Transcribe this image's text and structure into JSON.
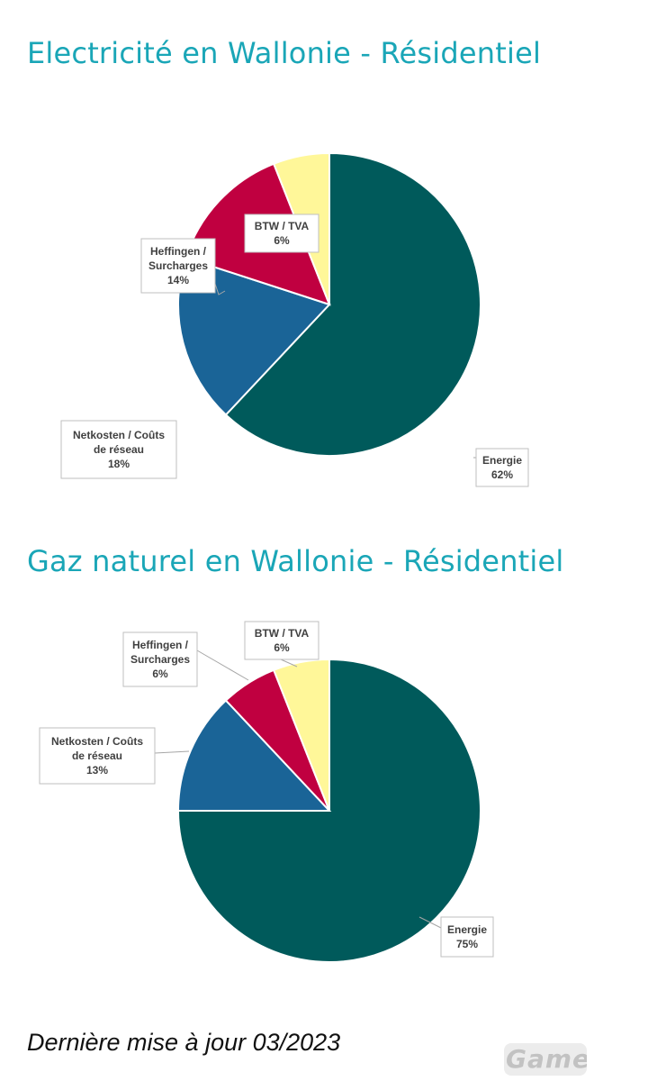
{
  "chart_data": [
    {
      "type": "pie",
      "title": "Electricité en Wallonie - Résidentiel",
      "slices": [
        {
          "label_lines": [
            "Energie"
          ],
          "value": 62,
          "value_label": "62%",
          "color": "#005a5b"
        },
        {
          "label_lines": [
            "Netkosten / Coûts",
            "de réseau"
          ],
          "value": 18,
          "value_label": "18%",
          "color": "#1a6497"
        },
        {
          "label_lines": [
            "Heffingen /",
            "Surcharges"
          ],
          "value": 14,
          "value_label": "14%",
          "color": "#c00040"
        },
        {
          "label_lines": [
            "BTW / TVA"
          ],
          "value": 6,
          "value_label": "6%",
          "color": "#fff799"
        }
      ]
    },
    {
      "type": "pie",
      "title": "Gaz naturel en Wallonie - Résidentiel",
      "slices": [
        {
          "label_lines": [
            "Energie"
          ],
          "value": 75,
          "value_label": "75%",
          "color": "#005a5b"
        },
        {
          "label_lines": [
            "Netkosten / Coûts",
            "de réseau"
          ],
          "value": 13,
          "value_label": "13%",
          "color": "#1a6497"
        },
        {
          "label_lines": [
            "Heffingen /",
            "Surcharges"
          ],
          "value": 6,
          "value_label": "6%",
          "color": "#c00040"
        },
        {
          "label_lines": [
            "BTW / TVA"
          ],
          "value": 6,
          "value_label": "6%",
          "color": "#fff799"
        }
      ]
    }
  ],
  "footer": {
    "last_update": "Dernière mise à jour 03/2023"
  },
  "watermark": {
    "text": "GamerZ"
  }
}
